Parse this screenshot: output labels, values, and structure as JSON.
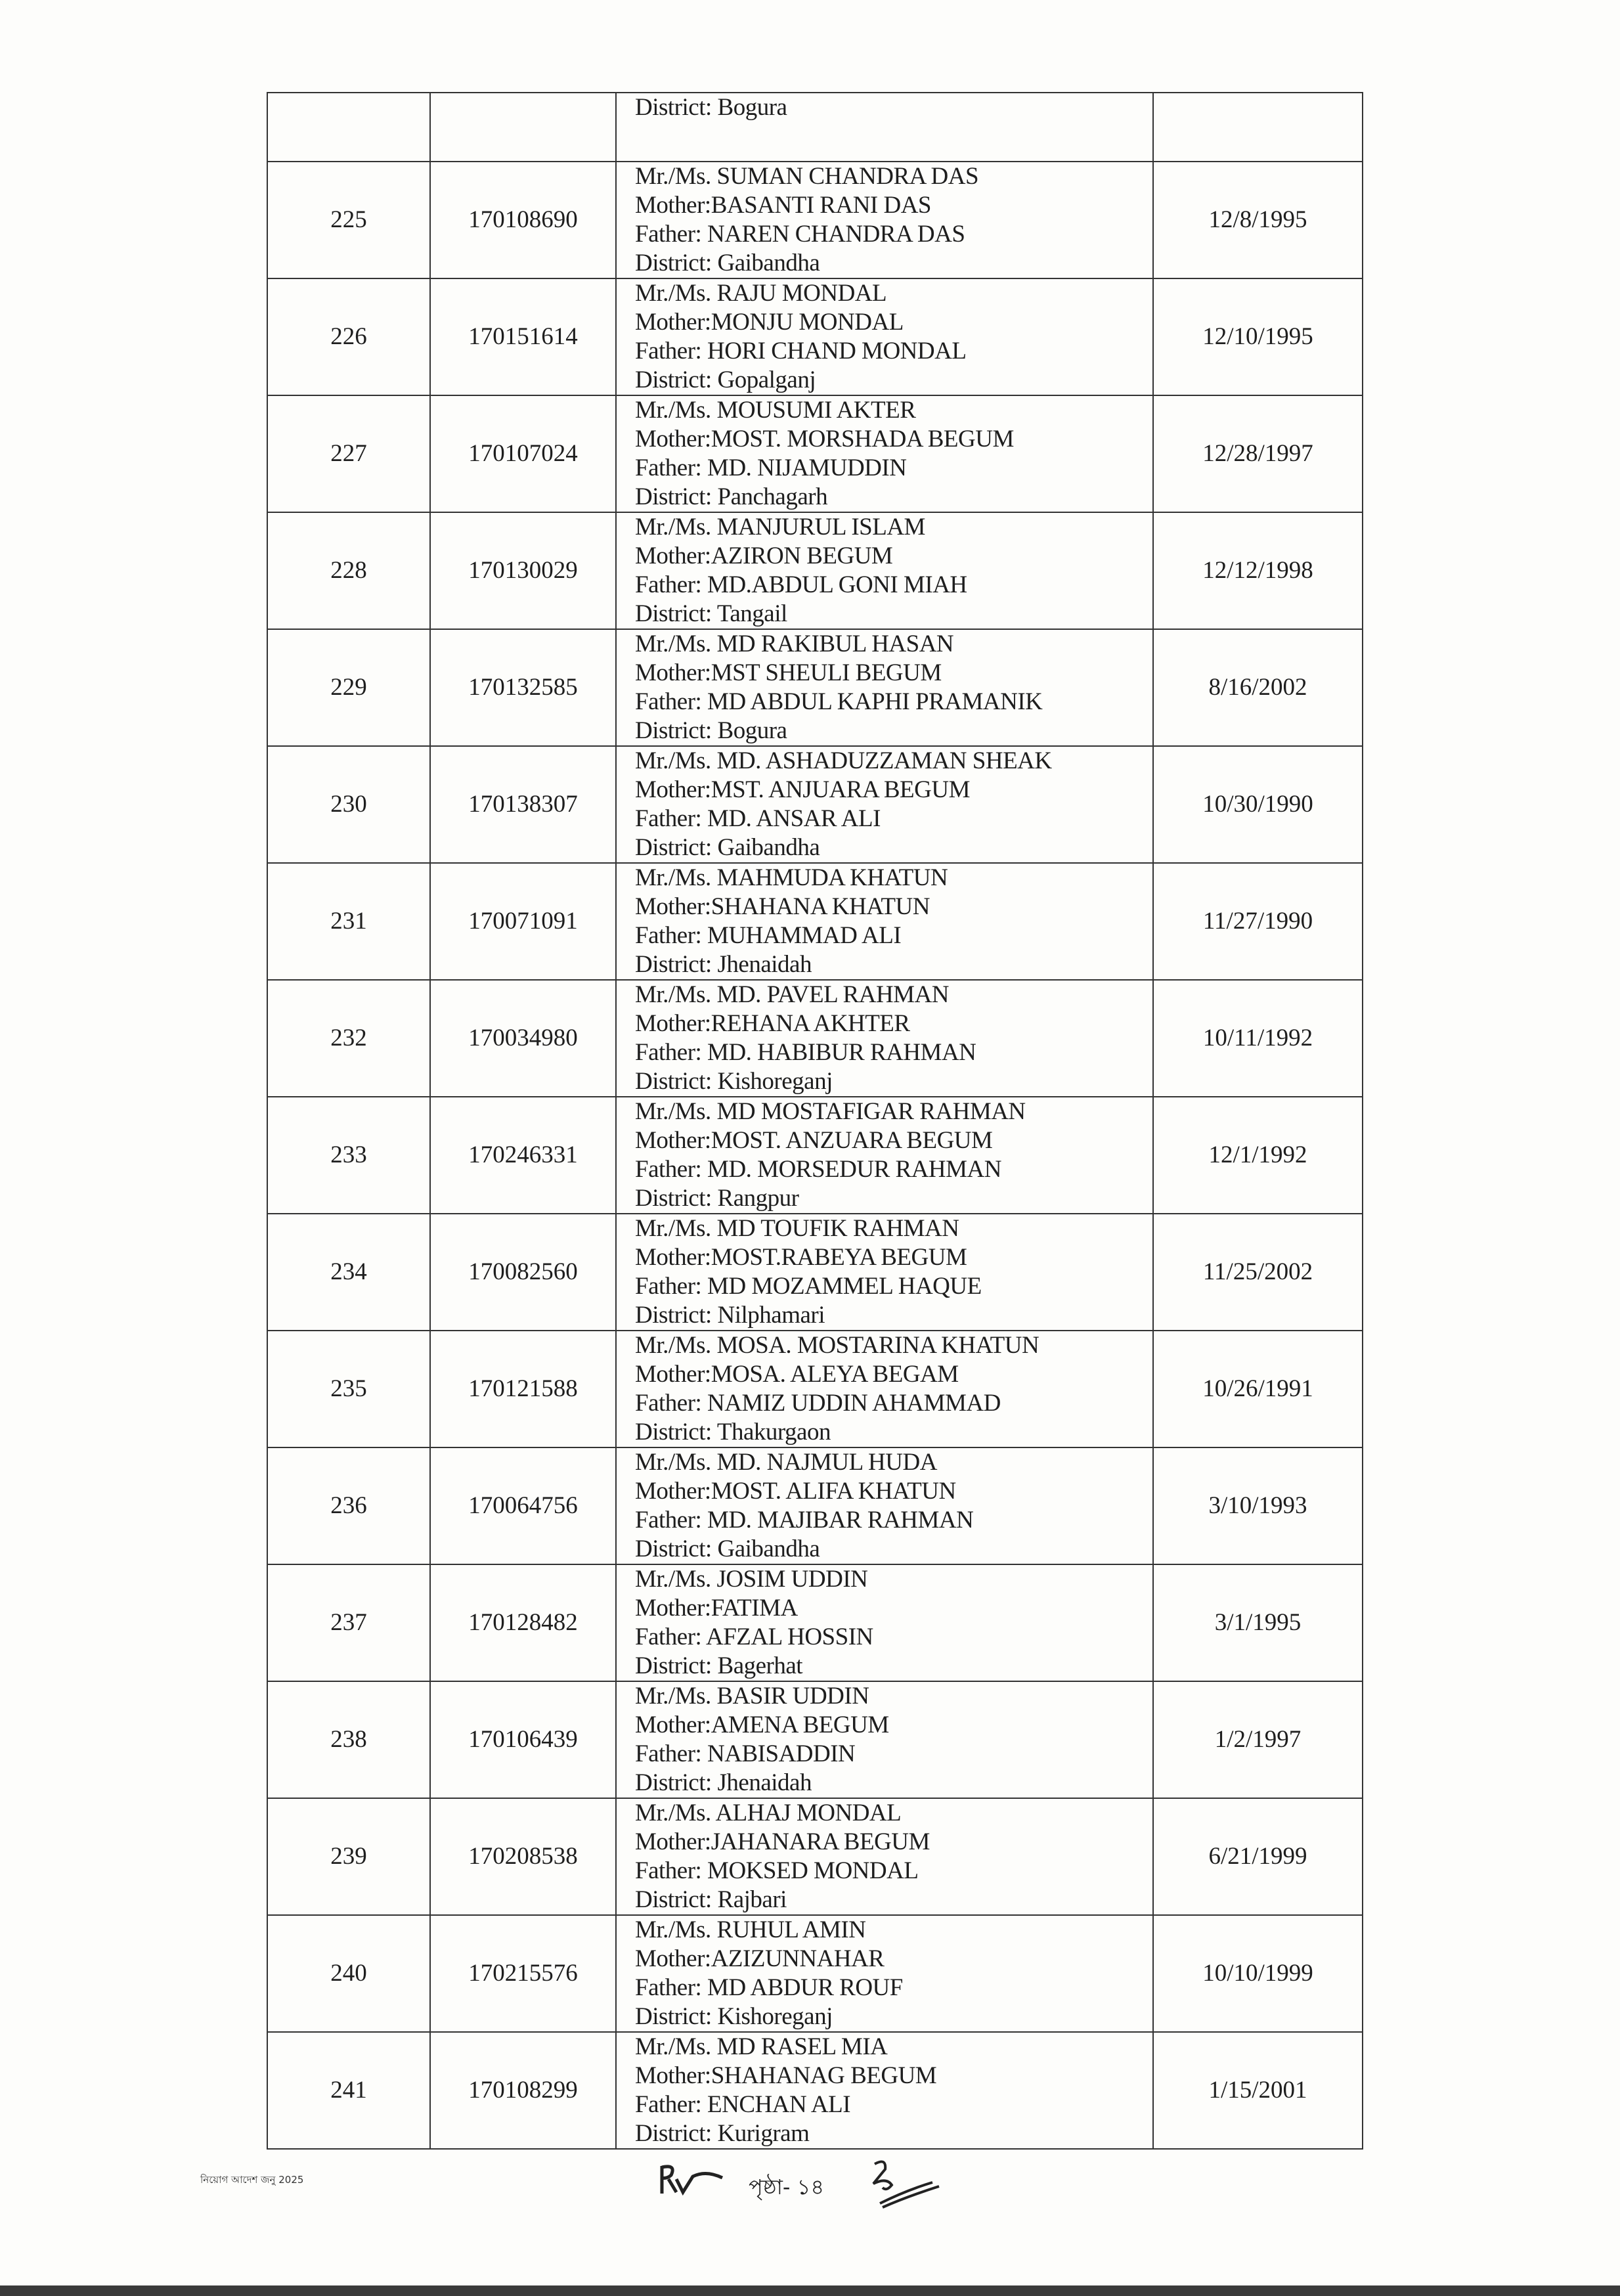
{
  "table": {
    "continuation": {
      "info": [
        "District: Bogura"
      ]
    },
    "rows": [
      {
        "sl": "225",
        "roll": "170108690",
        "info": [
          "Mr./Ms. SUMAN CHANDRA DAS",
          "Mother:BASANTI RANI DAS",
          "Father: NAREN CHANDRA DAS",
          "District: Gaibandha"
        ],
        "dob": "12/8/1995"
      },
      {
        "sl": "226",
        "roll": "170151614",
        "info": [
          "Mr./Ms. RAJU MONDAL",
          "Mother:MONJU MONDAL",
          "Father: HORI CHAND MONDAL",
          "District: Gopalganj"
        ],
        "dob": "12/10/1995"
      },
      {
        "sl": "227",
        "roll": "170107024",
        "info": [
          "Mr./Ms. MOUSUMI AKTER",
          "Mother:MOST. MORSHADA BEGUM",
          "Father: MD. NIJAMUDDIN",
          "District: Panchagarh"
        ],
        "dob": "12/28/1997"
      },
      {
        "sl": "228",
        "roll": "170130029",
        "info": [
          "Mr./Ms. MANJURUL ISLAM",
          "Mother:AZIRON BEGUM",
          "Father: MD.ABDUL GONI MIAH",
          "District: Tangail"
        ],
        "dob": "12/12/1998"
      },
      {
        "sl": "229",
        "roll": "170132585",
        "info": [
          "Mr./Ms. MD RAKIBUL  HASAN",
          "Mother:MST SHEULI BEGUM",
          "Father: MD ABDUL KAPHI PRAMANIK",
          "District: Bogura"
        ],
        "dob": "8/16/2002"
      },
      {
        "sl": "230",
        "roll": "170138307",
        "info": [
          "Mr./Ms. MD. ASHADUZZAMAN SHEAK",
          "Mother:MST. ANJUARA BEGUM",
          "Father: MD. ANSAR ALI",
          "District: Gaibandha"
        ],
        "dob": "10/30/1990"
      },
      {
        "sl": "231",
        "roll": "170071091",
        "info": [
          "Mr./Ms. MAHMUDA KHATUN",
          "Mother:SHAHANA KHATUN",
          "Father: MUHAMMAD ALI",
          "District: Jhenaidah"
        ],
        "dob": "11/27/1990"
      },
      {
        "sl": "232",
        "roll": "170034980",
        "info": [
          "Mr./Ms. MD. PAVEL  RAHMAN",
          "Mother:REHANA AKHTER",
          "Father: MD. HABIBUR RAHMAN",
          "District: Kishoreganj"
        ],
        "dob": "10/11/1992"
      },
      {
        "sl": "233",
        "roll": "170246331",
        "info": [
          "Mr./Ms. MD MOSTAFIGAR RAHMAN",
          "Mother:MOST. ANZUARA BEGUM",
          "Father: MD. MORSEDUR RAHMAN",
          "District: Rangpur"
        ],
        "dob": "12/1/1992"
      },
      {
        "sl": "234",
        "roll": "170082560",
        "info": [
          "Mr./Ms. MD TOUFIK RAHMAN",
          "Mother:MOST.RABEYA BEGUM",
          "Father: MD MOZAMMEL HAQUE",
          "District: Nilphamari"
        ],
        "dob": "11/25/2002"
      },
      {
        "sl": "235",
        "roll": "170121588",
        "info": [
          "Mr./Ms. MOSA. MOSTARINA KHATUN",
          "Mother:MOSA. ALEYA BEGAM",
          "Father: NAMIZ UDDIN AHAMMAD",
          "District: Thakurgaon"
        ],
        "dob": "10/26/1991"
      },
      {
        "sl": "236",
        "roll": "170064756",
        "info": [
          "Mr./Ms. MD. NAJMUL HUDA",
          "Mother:MOST. ALIFA KHATUN",
          "Father: MD. MAJIBAR RAHMAN",
          "District: Gaibandha"
        ],
        "dob": "3/10/1993"
      },
      {
        "sl": "237",
        "roll": "170128482",
        "info": [
          "Mr./Ms. JOSIM UDDIN",
          "Mother:FATIMA",
          "Father: AFZAL HOSSIN",
          "District: Bagerhat"
        ],
        "dob": "3/1/1995"
      },
      {
        "sl": "238",
        "roll": "170106439",
        "info": [
          "Mr./Ms. BASIR UDDIN",
          "Mother:AMENA BEGUM",
          "Father: NABISADDIN",
          "District: Jhenaidah"
        ],
        "dob": "1/2/1997"
      },
      {
        "sl": "239",
        "roll": "170208538",
        "info": [
          "Mr./Ms. ALHAJ MONDAL",
          "Mother:JAHANARA BEGUM",
          "Father: MOKSED MONDAL",
          "District: Rajbari"
        ],
        "dob": "6/21/1999"
      },
      {
        "sl": "240",
        "roll": "170215576",
        "info": [
          "Mr./Ms. RUHUL AMIN",
          "Mother:AZIZUNNAHAR",
          "Father: MD ABDUR ROUF",
          "District: Kishoreganj"
        ],
        "dob": "10/10/1999"
      },
      {
        "sl": "241",
        "roll": "170108299",
        "info": [
          "Mr./Ms. MD RASEL MIA",
          "Mother:SHAHANAG BEGUM",
          "Father: ENCHAN ALI",
          "District: Kurigram"
        ],
        "dob": "1/15/2001"
      }
    ]
  },
  "footer": {
    "left_note": "নিয়োগ আদেশ জনু 2025",
    "page_label": "পৃষ্ঠা- ১৪",
    "signature_left": "initial signature",
    "signature_right": "initial signature"
  }
}
